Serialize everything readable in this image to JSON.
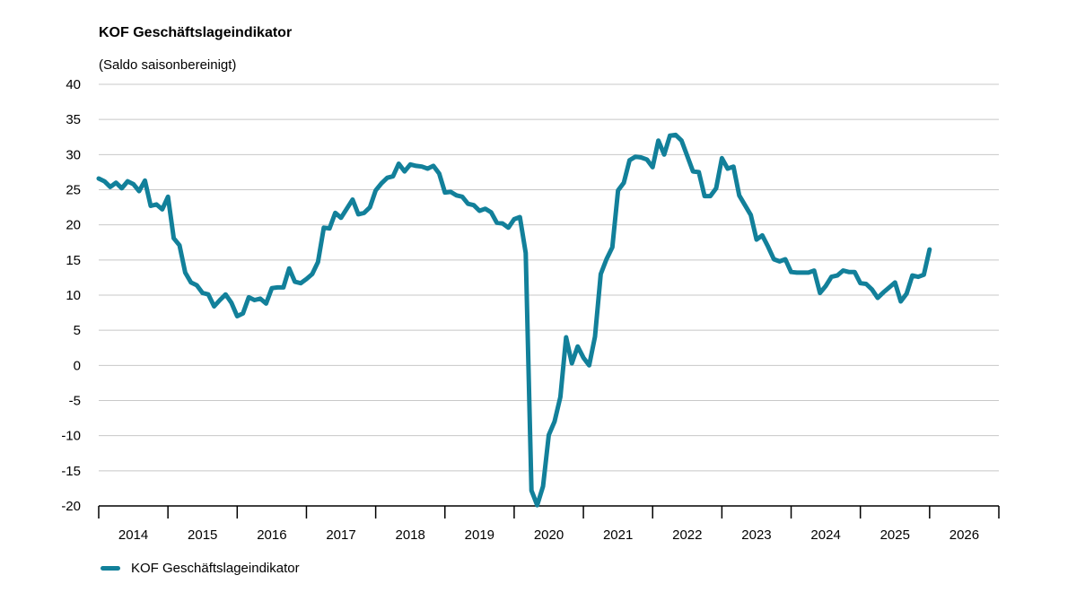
{
  "chart_data": {
    "type": "line",
    "title": "KOF Geschäftslageindikator",
    "subtitle": "(Saldo saisonbereinigt)",
    "xlabel": "",
    "ylabel": "",
    "ylim": [
      -20,
      40
    ],
    "yticks": [
      40,
      35,
      30,
      25,
      20,
      15,
      10,
      5,
      0,
      -5,
      -10,
      -15,
      -20
    ],
    "xlim": [
      2014.0,
      2027.0
    ],
    "year_labels": [
      "2014",
      "2015",
      "2016",
      "2017",
      "2018",
      "2019",
      "2020",
      "2021",
      "2022",
      "2023",
      "2024",
      "2025",
      "2026"
    ],
    "grid": true,
    "legend_position": "bottom-left",
    "color": "#12809a",
    "series": [
      {
        "name": "KOF Geschäftslageindikator",
        "x": [
          2014.0,
          2014.083,
          2014.167,
          2014.25,
          2014.333,
          2014.417,
          2014.5,
          2014.583,
          2014.667,
          2014.75,
          2014.833,
          2014.917,
          2015.0,
          2015.083,
          2015.167,
          2015.25,
          2015.333,
          2015.417,
          2015.5,
          2015.583,
          2015.667,
          2015.75,
          2015.833,
          2015.917,
          2016.0,
          2016.083,
          2016.167,
          2016.25,
          2016.333,
          2016.417,
          2016.5,
          2016.583,
          2016.667,
          2016.75,
          2016.833,
          2016.917,
          2017.0,
          2017.083,
          2017.167,
          2017.25,
          2017.333,
          2017.417,
          2017.5,
          2017.583,
          2017.667,
          2017.75,
          2017.833,
          2017.917,
          2018.0,
          2018.083,
          2018.167,
          2018.25,
          2018.333,
          2018.417,
          2018.5,
          2018.583,
          2018.667,
          2018.75,
          2018.833,
          2018.917,
          2019.0,
          2019.083,
          2019.167,
          2019.25,
          2019.333,
          2019.417,
          2019.5,
          2019.583,
          2019.667,
          2019.75,
          2019.833,
          2019.917,
          2020.0,
          2020.083,
          2020.167,
          2020.25,
          2020.333,
          2020.417,
          2020.5,
          2020.583,
          2020.667,
          2020.75,
          2020.833,
          2020.917,
          2021.0,
          2021.083,
          2021.167,
          2021.25,
          2021.333,
          2021.417,
          2021.5,
          2021.583,
          2021.667,
          2021.75,
          2021.833,
          2021.917,
          2022.0,
          2022.083,
          2022.167,
          2022.25,
          2022.333,
          2022.417,
          2022.5,
          2022.583,
          2022.667,
          2022.75,
          2022.833,
          2022.917,
          2023.0,
          2023.083,
          2023.167,
          2023.25,
          2023.333,
          2023.417,
          2023.5,
          2023.583,
          2023.667,
          2023.75,
          2023.833,
          2023.917,
          2024.0,
          2024.083,
          2024.167,
          2024.25,
          2024.333,
          2024.417,
          2024.5,
          2024.583,
          2024.667,
          2024.75,
          2024.833,
          2024.917,
          2025.0,
          2025.083,
          2025.167,
          2025.25,
          2025.333,
          2025.417,
          2025.5,
          2025.583,
          2025.667,
          2025.75,
          2025.833,
          2025.917,
          2026.0
        ],
        "values": [
          26.6,
          26.2,
          25.4,
          26.0,
          25.2,
          26.2,
          25.8,
          24.8,
          26.3,
          22.7,
          22.9,
          22.2,
          24.0,
          18.1,
          17.1,
          13.2,
          11.8,
          11.4,
          10.3,
          10.1,
          8.4,
          9.3,
          10.1,
          8.9,
          7.0,
          7.4,
          9.7,
          9.3,
          9.5,
          8.8,
          11.0,
          11.1,
          11.1,
          13.8,
          11.9,
          11.7,
          12.3,
          13.0,
          14.7,
          19.6,
          19.5,
          21.7,
          21.0,
          22.3,
          23.6,
          21.5,
          21.7,
          22.5,
          24.9,
          25.9,
          26.7,
          26.9,
          28.7,
          27.6,
          28.6,
          28.4,
          28.3,
          28.0,
          28.4,
          27.3,
          24.6,
          24.7,
          24.2,
          24.0,
          23.0,
          22.8,
          22.0,
          22.3,
          21.8,
          20.3,
          20.2,
          19.6,
          20.8,
          21.1,
          16.0,
          -17.8,
          -19.9,
          -17.2,
          -9.9,
          -8.0,
          -4.5,
          4.0,
          0.3,
          2.7,
          1.1,
          0.0,
          4.1,
          13.0,
          15.1,
          16.8,
          24.9,
          26.0,
          29.2,
          29.7,
          29.6,
          29.3,
          28.2,
          32.0,
          30.0,
          32.7,
          32.8,
          32.0,
          29.8,
          27.6,
          27.5,
          24.1,
          24.1,
          25.2,
          29.5,
          28.0,
          28.3,
          24.2,
          22.8,
          21.4,
          17.9,
          18.5,
          16.9,
          15.1,
          14.8,
          15.1,
          13.3,
          13.2,
          13.2,
          13.2,
          13.5,
          10.3,
          11.3,
          12.6,
          12.8,
          13.5,
          13.3,
          13.3,
          11.7,
          11.6,
          10.8,
          9.6,
          10.4,
          11.1,
          11.8,
          9.1,
          10.2,
          12.8,
          12.6,
          12.9,
          16.5
        ]
      }
    ]
  }
}
